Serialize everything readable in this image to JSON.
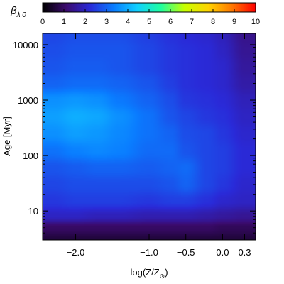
{
  "chart_data": {
    "type": "heatmap",
    "title": "",
    "colorbar": {
      "label_symbol": "β",
      "label_subscript": "λ,0",
      "range": [
        0,
        10
      ],
      "ticks": [
        "0",
        "1",
        "2",
        "3",
        "4",
        "5",
        "6",
        "7",
        "8",
        "9",
        "10"
      ],
      "colormap": [
        "#000000",
        "#3c0b6e",
        "#2a2ad8",
        "#0a7cff",
        "#11d0ff",
        "#1fffa0",
        "#c8ff00",
        "#ffd400",
        "#ff7800",
        "#ff0000"
      ]
    },
    "xaxis": {
      "label_main": "log(Z/Z",
      "label_sub": "⊙",
      "label_close": ")",
      "range": [
        -2.45,
        0.45
      ],
      "ticks": [
        {
          "value": -2.0,
          "label": "−2.0"
        },
        {
          "value": -1.0,
          "label": "−1.0"
        },
        {
          "value": -0.5,
          "label": "−0.5"
        },
        {
          "value": 0.0,
          "label": "0.0"
        },
        {
          "value": 0.3,
          "label": "0.3"
        }
      ]
    },
    "yaxis": {
      "label": "Age [Myr]",
      "scale": "log",
      "range": [
        3,
        16000
      ],
      "ticks": [
        {
          "value": 10,
          "label": "10"
        },
        {
          "value": 100,
          "label": "100"
        },
        {
          "value": 1000,
          "label": "1000"
        },
        {
          "value": 10000,
          "label": "10000"
        }
      ]
    },
    "grid": {
      "x": [
        -2.3,
        -2.0,
        -1.7,
        -1.4,
        -1.0,
        -0.7,
        -0.5,
        -0.2,
        0.0,
        0.3
      ],
      "y": [
        3,
        5,
        8,
        15,
        30,
        60,
        120,
        250,
        500,
        1000,
        2000,
        4000,
        8000,
        16000
      ],
      "values": [
        [
          0.6,
          0.6,
          0.6,
          0.6,
          0.6,
          0.6,
          0.6,
          0.6,
          0.6,
          0.6
        ],
        [
          1.0,
          1.0,
          1.0,
          1.0,
          1.0,
          1.0,
          1.0,
          1.0,
          0.9,
          0.9
        ],
        [
          2.0,
          2.0,
          1.9,
          1.9,
          1.8,
          1.8,
          1.8,
          1.7,
          1.6,
          1.5
        ],
        [
          2.4,
          2.5,
          2.5,
          2.5,
          2.4,
          2.5,
          2.5,
          2.3,
          2.1,
          2.0
        ],
        [
          2.6,
          2.7,
          2.7,
          2.7,
          2.7,
          2.8,
          3.0,
          2.6,
          2.4,
          2.1
        ],
        [
          2.8,
          2.9,
          3.0,
          3.0,
          2.9,
          3.0,
          3.1,
          2.6,
          2.5,
          2.2
        ],
        [
          3.2,
          3.4,
          3.5,
          3.4,
          3.1,
          3.1,
          2.8,
          2.6,
          2.5,
          2.2
        ],
        [
          3.6,
          3.8,
          3.7,
          3.5,
          3.2,
          3.0,
          2.7,
          2.6,
          2.4,
          2.1
        ],
        [
          3.8,
          4.0,
          3.9,
          3.6,
          3.2,
          2.8,
          2.6,
          2.4,
          2.3,
          2.0
        ],
        [
          3.6,
          3.7,
          3.6,
          3.3,
          3.0,
          2.7,
          2.4,
          2.3,
          2.2,
          1.9
        ],
        [
          3.0,
          3.1,
          3.1,
          3.0,
          2.8,
          2.5,
          2.3,
          2.2,
          2.1,
          1.7
        ],
        [
          2.8,
          2.9,
          2.9,
          2.8,
          2.6,
          2.4,
          2.3,
          2.2,
          2.1,
          1.6
        ],
        [
          2.7,
          2.8,
          2.8,
          2.8,
          2.6,
          2.4,
          2.3,
          2.2,
          2.0,
          1.5
        ],
        [
          2.6,
          2.7,
          2.7,
          2.7,
          2.5,
          2.3,
          2.2,
          2.1,
          1.9,
          1.4
        ]
      ]
    }
  }
}
